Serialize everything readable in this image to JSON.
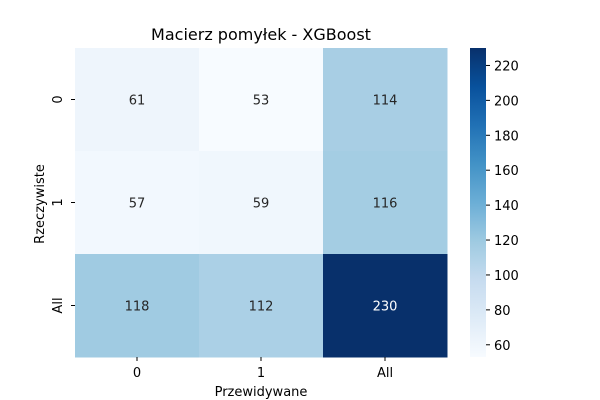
{
  "chart_data": {
    "type": "heatmap",
    "title": "Macierz pomyłek - XGBoost",
    "xlabel": "Przewidywane",
    "ylabel": "Rzeczywiste",
    "x_categories": [
      "0",
      "1",
      "All"
    ],
    "y_categories": [
      "0",
      "1",
      "All"
    ],
    "values": [
      [
        61,
        53,
        114
      ],
      [
        57,
        59,
        116
      ],
      [
        118,
        112,
        230
      ]
    ],
    "colormap": "Blues",
    "color_range": [
      53,
      230
    ],
    "colorbar_ticks": [
      60,
      80,
      100,
      120,
      140,
      160,
      180,
      200,
      220
    ],
    "colorbar_tick_labels": [
      "60",
      "80",
      "100",
      "120",
      "140",
      "160",
      "180",
      "200",
      "220"
    ],
    "annotation_colors": {
      "light_cells": "#262626",
      "dark_cells": "#ffffff"
    }
  }
}
